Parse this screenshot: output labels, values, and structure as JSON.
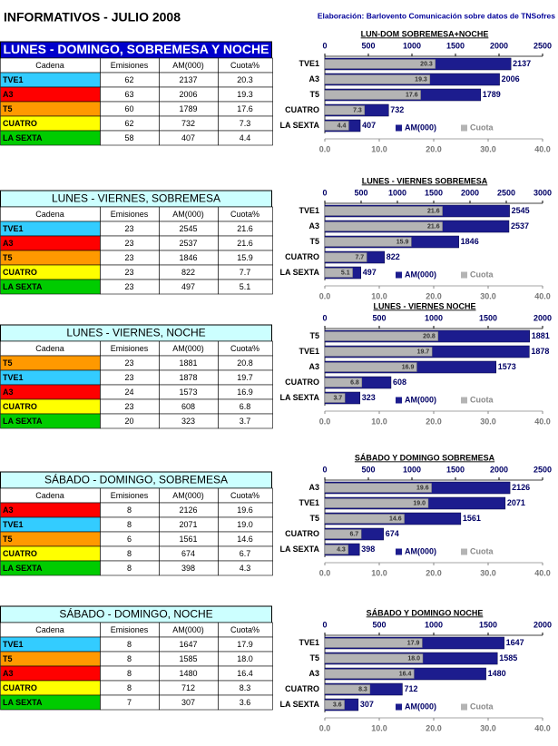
{
  "header": {
    "title": "INFORMATIVOS - JULIO 2008",
    "source": "Elaboración: Barlovento Comunicación sobre datos de TNSofres"
  },
  "channel_colors": {
    "TVE1": "#33ccff",
    "A3": "#ff0000",
    "T5": "#ff9900",
    "CUATRO": "#ffff00",
    "LA SEXTA": "#00cc00"
  },
  "tables": [
    {
      "title": "LUNES - DOMINGO, SOBREMESA Y NOCHE",
      "title_bg": "#0000cc",
      "title_color": "#ffffff",
      "columns": [
        "Cadena",
        "Emisiones",
        "AM(000)",
        "Cuota%"
      ],
      "rows": [
        [
          "TVE1",
          "62",
          "2137",
          "20.3"
        ],
        [
          "A3",
          "63",
          "2006",
          "19.3"
        ],
        [
          "T5",
          "60",
          "1789",
          "17.6"
        ],
        [
          "CUATRO",
          "62",
          "732",
          "7.3"
        ],
        [
          "LA SEXTA",
          "58",
          "407",
          "4.4"
        ]
      ]
    },
    {
      "title": "LUNES - VIERNES, SOBREMESA",
      "title_bg": "#ccffff",
      "title_color": "#000000",
      "columns": [
        "Cadena",
        "Emisiones",
        "AM(000)",
        "Cuota%"
      ],
      "rows": [
        [
          "TVE1",
          "23",
          "2545",
          "21.6"
        ],
        [
          "A3",
          "23",
          "2537",
          "21.6"
        ],
        [
          "T5",
          "23",
          "1846",
          "15.9"
        ],
        [
          "CUATRO",
          "23",
          "822",
          "7.7"
        ],
        [
          "LA SEXTA",
          "23",
          "497",
          "5.1"
        ]
      ]
    },
    {
      "title": "LUNES - VIERNES, NOCHE",
      "title_bg": "#ccffff",
      "title_color": "#000000",
      "columns": [
        "Cadena",
        "Emisiones",
        "AM(000)",
        "Cuota%"
      ],
      "rows": [
        [
          "T5",
          "23",
          "1881",
          "20.8"
        ],
        [
          "TVE1",
          "23",
          "1878",
          "19.7"
        ],
        [
          "A3",
          "24",
          "1573",
          "16.9"
        ],
        [
          "CUATRO",
          "23",
          "608",
          "6.8"
        ],
        [
          "LA SEXTA",
          "20",
          "323",
          "3.7"
        ]
      ]
    },
    {
      "title": "SÁBADO - DOMINGO, SOBREMESA",
      "title_bg": "#ccffff",
      "title_color": "#000000",
      "columns": [
        "Cadena",
        "Emisiones",
        "AM(000)",
        "Cuota%"
      ],
      "rows": [
        [
          "A3",
          "8",
          "2126",
          "19.6"
        ],
        [
          "TVE1",
          "8",
          "2071",
          "19.0"
        ],
        [
          "T5",
          "6",
          "1561",
          "14.6"
        ],
        [
          "CUATRO",
          "8",
          "674",
          "6.7"
        ],
        [
          "LA SEXTA",
          "8",
          "398",
          "4.3"
        ]
      ]
    },
    {
      "title": "SÁBADO - DOMINGO, NOCHE",
      "title_bg": "#ccffff",
      "title_color": "#000000",
      "columns": [
        "Cadena",
        "Emisiones",
        "AM(000)",
        "Cuota%"
      ],
      "rows": [
        [
          "TVE1",
          "8",
          "1647",
          "17.9"
        ],
        [
          "T5",
          "8",
          "1585",
          "18.0"
        ],
        [
          "A3",
          "8",
          "1480",
          "16.4"
        ],
        [
          "CUATRO",
          "8",
          "712",
          "8.3"
        ],
        [
          "LA SEXTA",
          "7",
          "307",
          "3.6"
        ]
      ]
    }
  ],
  "chart_data": [
    {
      "type": "bar",
      "title": "LUN-DOM SOBREMESA+NOCHE",
      "categories": [
        "TVE1",
        "A3",
        "T5",
        "CUATRO",
        "LA SEXTA"
      ],
      "series": [
        {
          "name": "AM(000)",
          "color": "#1c1c8e",
          "values": [
            2137,
            2006,
            1789,
            732,
            407
          ]
        },
        {
          "name": "Cuota",
          "color": "#b4b4b4",
          "axis": "x2",
          "values": [
            20.3,
            19.3,
            17.6,
            7.3,
            4.4
          ]
        }
      ],
      "xlim": [
        0,
        2500
      ],
      "xticks": [
        0,
        500,
        1000,
        1500,
        2000,
        2500
      ],
      "x2lim": [
        0,
        40
      ],
      "x2ticks": [
        {
          "value": 0,
          "label": "0.0"
        },
        {
          "value": 10,
          "label": "10.0"
        },
        {
          "value": 20,
          "label": "20.0"
        },
        {
          "value": 30,
          "label": "30.0"
        },
        {
          "value": 40,
          "label": "40.0"
        }
      ],
      "legend": "lower right"
    },
    {
      "type": "bar",
      "title": "LUNES - VIERNES SOBREMESA",
      "categories": [
        "TVE1",
        "A3",
        "T5",
        "CUATRO",
        "LA SEXTA"
      ],
      "series": [
        {
          "name": "AM(000)",
          "color": "#1c1c8e",
          "values": [
            2545,
            2537,
            1846,
            822,
            497
          ]
        },
        {
          "name": "Cuota",
          "color": "#b4b4b4",
          "axis": "x2",
          "values": [
            21.6,
            21.6,
            15.9,
            7.7,
            5.1
          ]
        }
      ],
      "xlim": [
        0,
        3000
      ],
      "xticks": [
        0,
        500,
        1000,
        1500,
        2000,
        2500,
        3000
      ],
      "x2lim": [
        0,
        40
      ],
      "x2ticks": [
        {
          "value": 0,
          "label": "0.0"
        },
        {
          "value": 10,
          "label": "10.0"
        },
        {
          "value": 20,
          "label": "20.0"
        },
        {
          "value": 30,
          "label": "30.0"
        },
        {
          "value": 40,
          "label": "40.0"
        }
      ],
      "legend": "lower right"
    },
    {
      "type": "bar",
      "title": "LUNES - VIERNES  NOCHE",
      "categories": [
        "T5",
        "TVE1",
        "A3",
        "CUATRO",
        "LA SEXTA"
      ],
      "series": [
        {
          "name": "AM(000)",
          "color": "#1c1c8e",
          "values": [
            1881,
            1878,
            1573,
            608,
            323
          ]
        },
        {
          "name": "Cuota",
          "color": "#b4b4b4",
          "axis": "x2",
          "values": [
            20.8,
            19.7,
            16.9,
            6.8,
            3.7
          ]
        }
      ],
      "xlim": [
        0,
        2000
      ],
      "xticks": [
        0,
        500,
        1000,
        1500,
        2000
      ],
      "x2lim": [
        0,
        40
      ],
      "x2ticks": [
        {
          "value": 0,
          "label": "0.0"
        },
        {
          "value": 10,
          "label": "10.0"
        },
        {
          "value": 20,
          "label": "20.0"
        },
        {
          "value": 30,
          "label": "30.0"
        },
        {
          "value": 40,
          "label": "40.0"
        }
      ],
      "legend": "lower right"
    },
    {
      "type": "bar",
      "title": "SÁBADO Y DOMINGO SOBREMESA",
      "categories": [
        "A3",
        "TVE1",
        "T5",
        "CUATRO",
        "LA SEXTA"
      ],
      "series": [
        {
          "name": "AM(000)",
          "color": "#1c1c8e",
          "values": [
            2126,
            2071,
            1561,
            674,
            398
          ]
        },
        {
          "name": "Cuota",
          "color": "#b4b4b4",
          "axis": "x2",
          "values": [
            19.6,
            19.0,
            14.6,
            6.7,
            4.3
          ],
          "value_labels": [
            "19.6",
            "19.0",
            "14.6",
            "6.7",
            "4.3"
          ]
        }
      ],
      "xlim": [
        0,
        2500
      ],
      "xticks": [
        0,
        500,
        1000,
        1500,
        2000,
        2500
      ],
      "x2lim": [
        0,
        40
      ],
      "x2ticks": [
        {
          "value": 0,
          "label": "0.0"
        },
        {
          "value": 10,
          "label": "10.0"
        },
        {
          "value": 20,
          "label": "20.0"
        },
        {
          "value": 30,
          "label": "30.0"
        },
        {
          "value": 40,
          "label": "40.0"
        }
      ],
      "legend": "lower right"
    },
    {
      "type": "bar",
      "title": "SÁBADO Y DOMINGO  NOCHE",
      "categories": [
        "TVE1",
        "T5",
        "A3",
        "CUATRO",
        "LA SEXTA"
      ],
      "series": [
        {
          "name": "AM(000)",
          "color": "#1c1c8e",
          "values": [
            1647,
            1585,
            1480,
            712,
            307
          ]
        },
        {
          "name": "Cuota",
          "color": "#b4b4b4",
          "axis": "x2",
          "values": [
            17.9,
            18.0,
            16.4,
            8.3,
            3.6
          ],
          "value_labels": [
            "17.9",
            "18.0",
            "16.4",
            "8.3",
            "3.6"
          ]
        }
      ],
      "xlim": [
        0,
        2000
      ],
      "xticks": [
        0,
        500,
        1000,
        1500,
        2000
      ],
      "x2lim": [
        0,
        40
      ],
      "x2ticks": [
        {
          "value": 0,
          "label": "0.0"
        },
        {
          "value": 10,
          "label": "10.0"
        },
        {
          "value": 20,
          "label": "20.0"
        },
        {
          "value": 30,
          "label": "30.0"
        },
        {
          "value": 40,
          "label": "40.0"
        }
      ],
      "legend": "lower right"
    }
  ]
}
